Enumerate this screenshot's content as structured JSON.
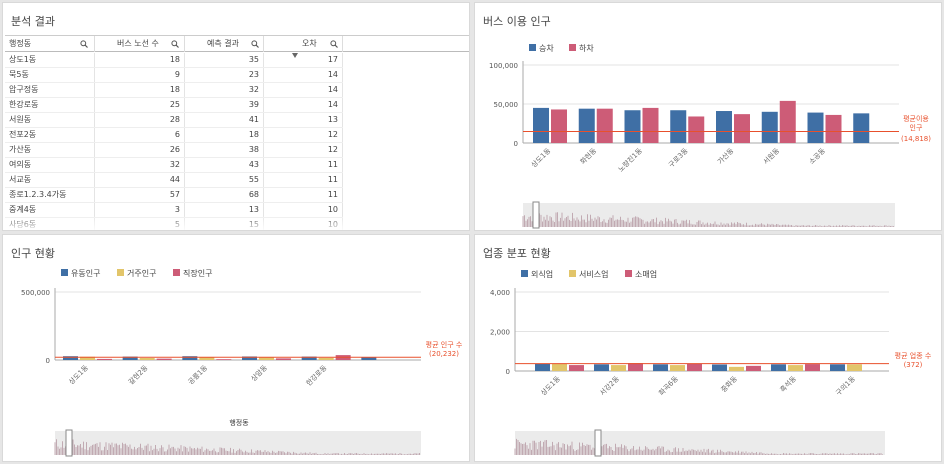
{
  "colors": {
    "blue": "#3f6fa5",
    "pink": "#cd5c77",
    "yellow": "#e2c56a",
    "avg": "#e8502c"
  },
  "table_panel": {
    "title": "분석 결과",
    "headers": [
      "행정동",
      "버스 노선 수",
      "예측 결과",
      "오차"
    ],
    "rows": [
      [
        "상도1동",
        "18",
        "35",
        "17"
      ],
      [
        "묵5동",
        "9",
        "23",
        "14"
      ],
      [
        "압구정동",
        "18",
        "32",
        "14"
      ],
      [
        "한강로동",
        "25",
        "39",
        "14"
      ],
      [
        "서원동",
        "28",
        "41",
        "13"
      ],
      [
        "전포2동",
        "6",
        "18",
        "12"
      ],
      [
        "가산동",
        "26",
        "38",
        "12"
      ],
      [
        "여의동",
        "32",
        "43",
        "11"
      ],
      [
        "서교동",
        "44",
        "55",
        "11"
      ],
      [
        "종로1.2.3.4가동",
        "57",
        "68",
        "11"
      ],
      [
        "중계4동",
        "3",
        "13",
        "10"
      ],
      [
        "사당6동",
        "5",
        "15",
        "10"
      ]
    ]
  },
  "bus_panel": {
    "title": "버스 이용 인구",
    "avg_label_1": "평균이용",
    "avg_label_2": "인구",
    "avg_value": "(14,818)"
  },
  "pop_panel": {
    "title": "인구 현황",
    "avg_label": "평균 인구 수",
    "avg_value": "(20,232)"
  },
  "biz_panel": {
    "title": "업종 분포 현황",
    "avg_label": "평균 업종 수",
    "avg_value": "(372)"
  },
  "chart_data": [
    {
      "type": "bar",
      "title": "버스 이용 인구",
      "categories": [
        "상도1동",
        "화현동",
        "노량진1동",
        "구로3동",
        "가산동",
        "서원동",
        "소공동",
        ""
      ],
      "series": [
        {
          "name": "승차",
          "values": [
            45000,
            44000,
            42000,
            42000,
            41000,
            40000,
            39000,
            38000
          ]
        },
        {
          "name": "하차",
          "values": [
            43000,
            44000,
            45000,
            34000,
            37000,
            54000,
            36000,
            null
          ]
        }
      ],
      "ylim": [
        0,
        100000
      ],
      "yticks": [
        "0",
        "50,000",
        "100,000"
      ],
      "avg": 14818,
      "legend": "top-left"
    },
    {
      "type": "bar",
      "title": "인구 현황",
      "xlabel": "행정동",
      "categories": [
        "상도1동",
        "갈현2동",
        "공릉1동",
        "상암동",
        "한강로동",
        ""
      ],
      "series": [
        {
          "name": "유동인구",
          "values": [
            28000,
            25000,
            28000,
            26000,
            25000,
            20000
          ]
        },
        {
          "name": "거주인구",
          "values": [
            24000,
            15000,
            22000,
            18000,
            16000,
            null
          ]
        },
        {
          "name": "직장인구",
          "values": [
            8000,
            10000,
            6000,
            12000,
            36000,
            null
          ]
        }
      ],
      "ylim": [
        0,
        500000
      ],
      "yticks": [
        "0",
        "500,000"
      ],
      "avg": 20232,
      "legend": "top-left"
    },
    {
      "type": "bar",
      "title": "업종 분포 현황",
      "categories": [
        "상도1동",
        "서강2동",
        "화곡6동",
        "중화동",
        "흑석동",
        "구의1동"
      ],
      "series": [
        {
          "name": "외식업",
          "values": [
            360,
            340,
            340,
            330,
            340,
            340
          ]
        },
        {
          "name": "서비스업",
          "values": [
            380,
            300,
            300,
            210,
            300,
            340
          ]
        },
        {
          "name": "소매업",
          "values": [
            300,
            400,
            360,
            260,
            350,
            null
          ]
        }
      ],
      "ylim": [
        0,
        4000
      ],
      "yticks": [
        "0",
        "2,000",
        "4,000"
      ],
      "avg": 372,
      "legend": "top-left"
    }
  ]
}
